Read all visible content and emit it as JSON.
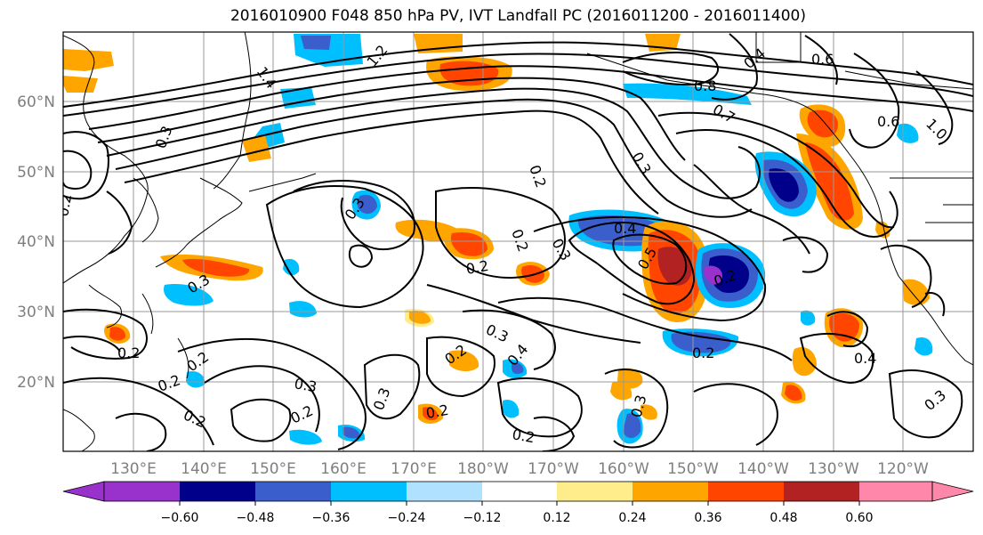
{
  "title": "2016010900 F048 850 hPa PV, IVT Landfall PC (2016011200 - 2016011400)",
  "map": {
    "projection": "PlateCarree",
    "lon_range_label": "120°E–110°W",
    "lat_range_label": "10°N–70°N",
    "lon_ticks": [
      "130°E",
      "140°E",
      "150°E",
      "160°E",
      "170°E",
      "180°W",
      "170°W",
      "160°W",
      "150°W",
      "140°W",
      "130°W",
      "120°W"
    ],
    "lat_ticks": [
      "20°N",
      "30°N",
      "40°N",
      "50°N",
      "60°N"
    ],
    "gridlines": true,
    "coastlines": true,
    "contour_labels": [
      "1.4",
      "1.2",
      "0.6",
      "0.4",
      "0.8",
      "0.7",
      "1.0",
      "0.6",
      "0.2",
      "0.3",
      "0.3",
      "0.2",
      "0.4",
      "0.5",
      "0.2",
      "0.3",
      "0.2",
      "0.3",
      "0.2",
      "0.2",
      "0.2",
      "0.3",
      "0.2",
      "0.2",
      "0.3",
      "0.3",
      "0.4",
      "0.2",
      "0.2",
      "0.4",
      "0.3",
      "0.2",
      "0.3",
      "0.2",
      "0.2",
      "0.3"
    ]
  },
  "colorbar": {
    "ticks": [
      "−0.60",
      "−0.48",
      "−0.36",
      "−0.24",
      "−0.12",
      "0.12",
      "0.24",
      "0.36",
      "0.48",
      "0.60"
    ],
    "colors": [
      "#9932cc",
      "#00008b",
      "#3a5fcd",
      "#00bfff",
      "#b0e2ff",
      "#ffffff",
      "#ffec8b",
      "#ffa500",
      "#ff4500",
      "#b22222",
      "#ff88aa"
    ],
    "extend": "both"
  }
}
